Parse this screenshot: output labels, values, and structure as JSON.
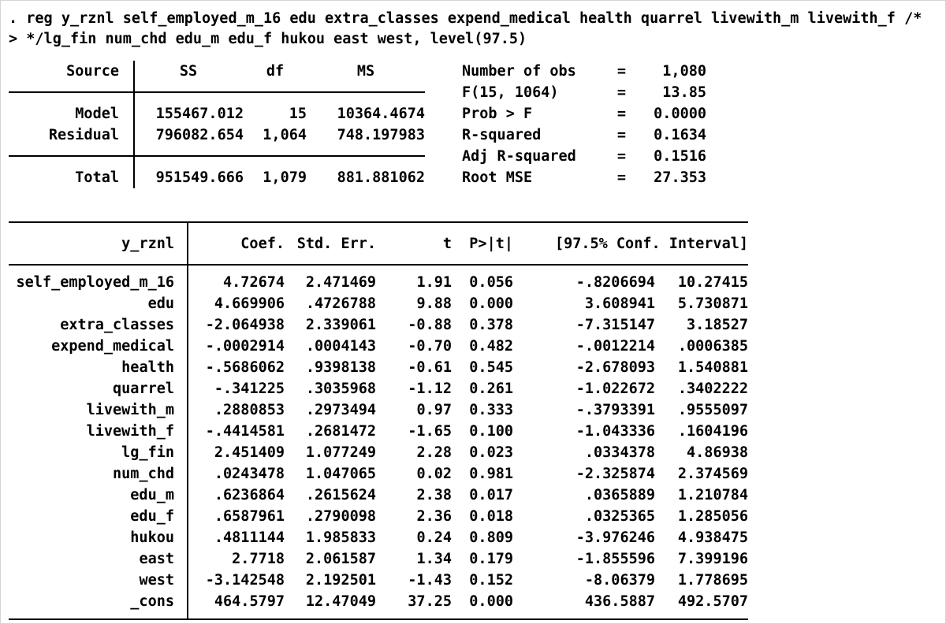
{
  "command": {
    "line1": ". reg y_rznl self_employed_m_16 edu extra_classes expend_medical health quarrel livewith_m livewith_f /*",
    "line2": "> */lg_fin num_chd edu_m edu_f hukou east west, level(97.5)"
  },
  "anova": {
    "headers": {
      "source": "Source",
      "ss": "SS",
      "df": "df",
      "ms": "MS"
    },
    "rows": [
      {
        "source": "Model",
        "ss": "155467.012",
        "df": "15",
        "ms": "10364.4674"
      },
      {
        "source": "Residual",
        "ss": "796082.654",
        "df": "1,064",
        "ms": "748.197983"
      },
      {
        "source": "Total",
        "ss": "951549.666",
        "df": "1,079",
        "ms": "881.881062"
      }
    ]
  },
  "stats": {
    "equals_sign": "=",
    "rows": [
      {
        "label": "Number of obs",
        "value": "1,080"
      },
      {
        "label": "F(15, 1064)",
        "value": "13.85"
      },
      {
        "label": "Prob > F",
        "value": "0.0000"
      },
      {
        "label": "R-squared",
        "value": "0.1634"
      },
      {
        "label": "Adj R-squared",
        "value": "0.1516"
      },
      {
        "label": "Root MSE",
        "value": "27.353"
      }
    ]
  },
  "regression": {
    "headers": {
      "depvar": "y_rznl",
      "coef": "Coef.",
      "se": "Std. Err.",
      "t": "t",
      "p": "P>|t|",
      "ci": "[97.5% Conf. Interval]"
    },
    "rows": [
      {
        "name": "self_employed_m_16",
        "coef": "4.72674",
        "se": "2.471469",
        "t": "1.91",
        "p": "0.056",
        "ci_low": "-.8206694",
        "ci_high": "10.27415"
      },
      {
        "name": "edu",
        "coef": "4.669906",
        "se": ".4726788",
        "t": "9.88",
        "p": "0.000",
        "ci_low": "3.608941",
        "ci_high": "5.730871"
      },
      {
        "name": "extra_classes",
        "coef": "-2.064938",
        "se": "2.339061",
        "t": "-0.88",
        "p": "0.378",
        "ci_low": "-7.315147",
        "ci_high": "3.18527"
      },
      {
        "name": "expend_medical",
        "coef": "-.0002914",
        "se": ".0004143",
        "t": "-0.70",
        "p": "0.482",
        "ci_low": "-.0012214",
        "ci_high": ".0006385"
      },
      {
        "name": "health",
        "coef": "-.5686062",
        "se": ".9398138",
        "t": "-0.61",
        "p": "0.545",
        "ci_low": "-2.678093",
        "ci_high": "1.540881"
      },
      {
        "name": "quarrel",
        "coef": "-.341225",
        "se": ".3035968",
        "t": "-1.12",
        "p": "0.261",
        "ci_low": "-1.022672",
        "ci_high": ".3402222"
      },
      {
        "name": "livewith_m",
        "coef": ".2880853",
        "se": ".2973494",
        "t": "0.97",
        "p": "0.333",
        "ci_low": "-.3793391",
        "ci_high": ".9555097"
      },
      {
        "name": "livewith_f",
        "coef": "-.4414581",
        "se": ".2681472",
        "t": "-1.65",
        "p": "0.100",
        "ci_low": "-1.043336",
        "ci_high": ".1604196"
      },
      {
        "name": "lg_fin",
        "coef": "2.451409",
        "se": "1.077249",
        "t": "2.28",
        "p": "0.023",
        "ci_low": ".0334378",
        "ci_high": "4.86938"
      },
      {
        "name": "num_chd",
        "coef": ".0243478",
        "se": "1.047065",
        "t": "0.02",
        "p": "0.981",
        "ci_low": "-2.325874",
        "ci_high": "2.374569"
      },
      {
        "name": "edu_m",
        "coef": ".6236864",
        "se": ".2615624",
        "t": "2.38",
        "p": "0.017",
        "ci_low": ".0365889",
        "ci_high": "1.210784"
      },
      {
        "name": "edu_f",
        "coef": ".6587961",
        "se": ".2790098",
        "t": "2.36",
        "p": "0.018",
        "ci_low": ".0325365",
        "ci_high": "1.285056"
      },
      {
        "name": "hukou",
        "coef": ".4811144",
        "se": "1.985833",
        "t": "0.24",
        "p": "0.809",
        "ci_low": "-3.976246",
        "ci_high": "4.938475"
      },
      {
        "name": "east",
        "coef": "2.7718",
        "se": "2.061587",
        "t": "1.34",
        "p": "0.179",
        "ci_low": "-1.855596",
        "ci_high": "7.399196"
      },
      {
        "name": "west",
        "coef": "-3.142548",
        "se": "2.192501",
        "t": "-1.43",
        "p": "0.152",
        "ci_low": "-8.06379",
        "ci_high": "1.778695"
      },
      {
        "name": "_cons",
        "coef": "464.5797",
        "se": "12.47049",
        "t": "37.25",
        "p": "0.000",
        "ci_low": "436.5887",
        "ci_high": "492.5707"
      }
    ]
  }
}
